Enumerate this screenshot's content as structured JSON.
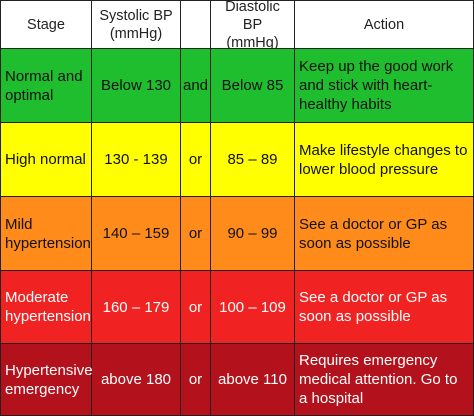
{
  "header": {
    "stage": "Stage",
    "systolic": "Systolic BP\n(mmHg)",
    "connector": "",
    "diastolic": "Diastolic BP\n(mmHg)",
    "action": "Action"
  },
  "rows": [
    {
      "stage": "Normal and optimal",
      "systolic": "Below 130",
      "connector": "and",
      "diastolic": "Below 85",
      "action": "Keep up the good work and stick with heart-healthy habits",
      "bg": "#1fbe2f",
      "color": "#111111"
    },
    {
      "stage": "High normal",
      "systolic": "130 - 139",
      "connector": "or",
      "diastolic": "85 – 89",
      "action": "Make lifestyle changes to lower blood pressure",
      "bg": "#ffff00",
      "color": "#111111"
    },
    {
      "stage": "Mild hypertension",
      "systolic": "140 – 159",
      "connector": "or",
      "diastolic": "90 – 99",
      "action": "See a doctor or GP as soon as possible",
      "bg": "#ff8c1a",
      "color": "#111111"
    },
    {
      "stage": "Moderate hypertension",
      "systolic": "160 – 179",
      "connector": "or",
      "diastolic": "100 – 109",
      "action": "See a doctor or GP as soon as possible",
      "bg": "#f02222",
      "color": "#ffffff"
    },
    {
      "stage": "Hypertensive emergency",
      "systolic": "above 180",
      "connector": "or",
      "diastolic": "above 110",
      "action": "Requires emergency medical attention. Go to a hospital",
      "bg": "#b3121c",
      "color": "#ffffff"
    }
  ]
}
